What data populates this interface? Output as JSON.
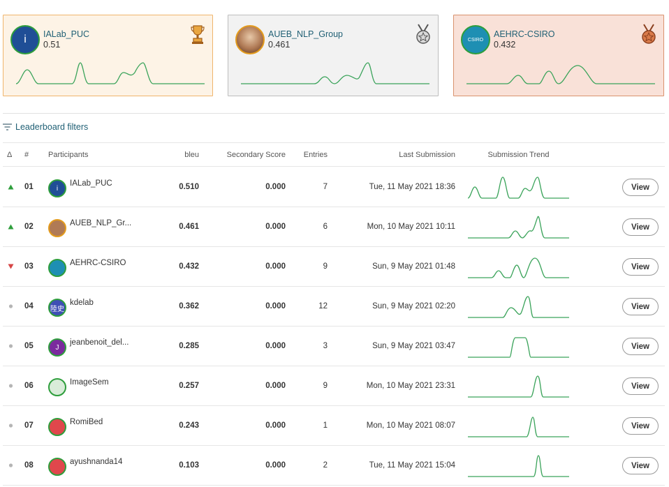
{
  "podium": [
    {
      "name": "IALab_PUC",
      "score": "0.51",
      "medal": "trophy-icon",
      "avatar_color": "#1f4e96"
    },
    {
      "name": "AUEB_NLP_Group",
      "score": "0.461",
      "medal": "silver-medal-icon",
      "avatar_color": "#8c5a3c"
    },
    {
      "name": "AEHRC-CSIRO",
      "score": "0.432",
      "medal": "bronze-medal-icon",
      "avatar_color": "#1e8fb3"
    }
  ],
  "filters_label": "Leaderboard filters",
  "table": {
    "headers": {
      "delta": "Δ",
      "rank": "#",
      "participants": "Participants",
      "bleu": "bleu",
      "secondary": "Secondary Score",
      "entries": "Entries",
      "last": "Last Submission",
      "trend": "Submission Trend"
    },
    "rows": [
      {
        "delta": "up",
        "rank": "01",
        "name": "IALab_PUC",
        "bleu": "0.510",
        "secondary": "0.000",
        "entries": "7",
        "last": "Tue, 11 May 2021 18:36",
        "avatar_text": "i",
        "avatar_color": "#1f4e96",
        "avatar_border": "#2e9e3c",
        "view": "View"
      },
      {
        "delta": "up",
        "rank": "02",
        "name": "AUEB_NLP_Gr...",
        "bleu": "0.461",
        "secondary": "0.000",
        "entries": "6",
        "last": "Mon, 10 May 2021 10:11",
        "avatar_text": "",
        "avatar_color": "#b07a55",
        "avatar_border": "#e39b1d",
        "view": "View"
      },
      {
        "delta": "down",
        "rank": "03",
        "name": "AEHRC-CSIRO",
        "bleu": "0.432",
        "secondary": "0.000",
        "entries": "9",
        "last": "Sun, 9 May 2021 01:48",
        "avatar_text": "",
        "avatar_color": "#1e8fb3",
        "avatar_border": "#2e9e3c",
        "view": "View"
      },
      {
        "delta": "none",
        "rank": "04",
        "name": "kdelab",
        "bleu": "0.362",
        "secondary": "0.000",
        "entries": "12",
        "last": "Sun, 9 May 2021 02:20",
        "avatar_text": "陸史",
        "avatar_color": "#3f4fb5",
        "avatar_border": "#2e9e3c",
        "view": "View"
      },
      {
        "delta": "none",
        "rank": "05",
        "name": "jeanbenoit_del...",
        "bleu": "0.285",
        "secondary": "0.000",
        "entries": "3",
        "last": "Sun, 9 May 2021 03:47",
        "avatar_text": "J",
        "avatar_color": "#7b2a9e",
        "avatar_border": "#2e9e3c",
        "view": "View"
      },
      {
        "delta": "none",
        "rank": "06",
        "name": "ImageSem",
        "bleu": "0.257",
        "secondary": "0.000",
        "entries": "9",
        "last": "Mon, 10 May 2021 23:31",
        "avatar_text": "",
        "avatar_color": "#d9ecd9",
        "avatar_border": "#2e9e3c",
        "view": "View"
      },
      {
        "delta": "none",
        "rank": "07",
        "name": "RomiBed",
        "bleu": "0.243",
        "secondary": "0.000",
        "entries": "1",
        "last": "Mon, 10 May 2021 08:07",
        "avatar_text": "",
        "avatar_color": "#e0474c",
        "avatar_border": "#2e9e3c",
        "view": "View"
      },
      {
        "delta": "none",
        "rank": "08",
        "name": "ayushnanda14",
        "bleu": "0.103",
        "secondary": "0.000",
        "entries": "2",
        "last": "Tue, 11 May 2021 15:04",
        "avatar_text": "",
        "avatar_color": "#e0474c",
        "avatar_border": "#2e9e3c",
        "view": "View"
      }
    ]
  },
  "colors": {
    "up": "#2e9e3c",
    "down": "#d64545",
    "neutral": "#b5b5b5",
    "trend": "#3aa35a"
  }
}
